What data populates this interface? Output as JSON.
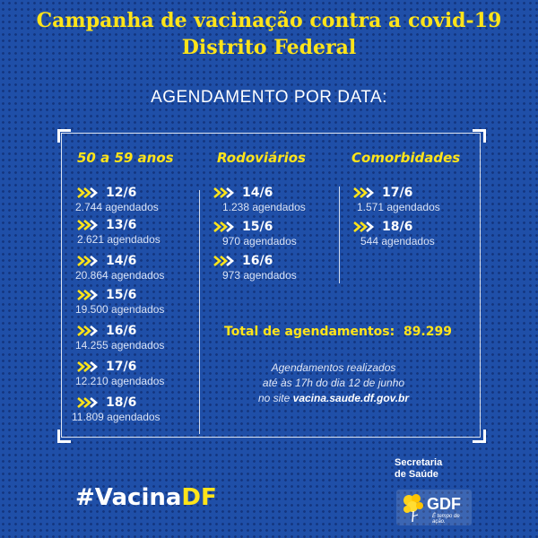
{
  "header": {
    "title_line1": "Campanha de vacinação contra a covid-19",
    "title_line2": "Distrito Federal",
    "subtitle": "AGENDAMENTO POR DATA:"
  },
  "columns": [
    {
      "heading": "50 a 59 anos",
      "entries": [
        {
          "date": "12/6",
          "count": "2.744 agendados"
        },
        {
          "date": "13/6",
          "count": "2.621 agendados"
        },
        {
          "date": "14/6",
          "count": "20.864 agendados"
        },
        {
          "date": "15/6",
          "count": "19.500 agendados"
        },
        {
          "date": "16/6",
          "count": "14.255 agendados"
        },
        {
          "date": "17/6",
          "count": "12.210 agendados"
        },
        {
          "date": "18/6",
          "count": "11.809 agendados"
        }
      ]
    },
    {
      "heading": "Rodoviários",
      "entries": [
        {
          "date": "14/6",
          "count": "1.238 agendados"
        },
        {
          "date": "15/6",
          "count": "970 agendados"
        },
        {
          "date": "16/6",
          "count": "973 agendados"
        }
      ]
    },
    {
      "heading": "Comorbidades",
      "entries": [
        {
          "date": "17/6",
          "count": "1.571 agendados"
        },
        {
          "date": "18/6",
          "count": "544 agendados"
        }
      ]
    }
  ],
  "total": {
    "label": "Total de agendamentos:",
    "value": "89.299"
  },
  "note": {
    "line1": "Agendamentos realizados",
    "line2": "até às 17h do dia 12 de junho",
    "line3_prefix": "no site",
    "site": "vacina.saude.df.gov.br"
  },
  "footer": {
    "hashtag_prefix": "#Vacina",
    "hashtag_suffix": "DF",
    "secretaria_line1": "Secretaria",
    "secretaria_line2": "de Saúde",
    "gdf_logo_text": "GDF",
    "gdf_tagline": "É tempo de ação."
  },
  "colors": {
    "background": "#1f4fa8",
    "accent_yellow": "#ffe419",
    "text_white": "#ffffff"
  },
  "icons": {
    "bullet": "double-chevron-icon"
  }
}
